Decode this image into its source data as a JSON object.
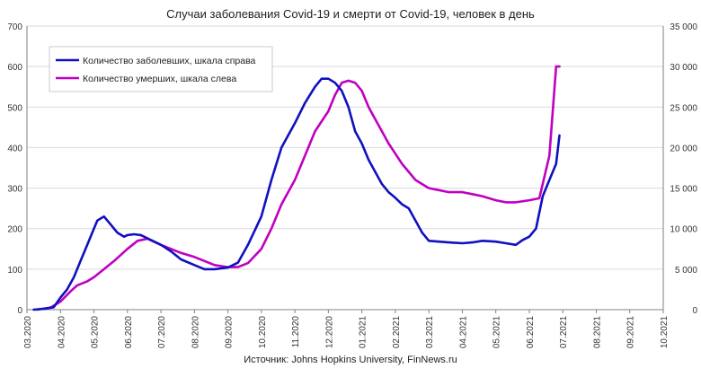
{
  "chart_data": {
    "type": "line",
    "title": "Случаи заболевания Covid-19 и смерти от Covid-19, человек в день",
    "source": "Источник: Johns Hopkins University, FinNews.ru",
    "x_labels": [
      "03.2020",
      "04.2020",
      "05.2020",
      "06.2020",
      "07.2020",
      "08.2020",
      "09.2020",
      "10.2020",
      "11.2020",
      "12.2020",
      "01.2021",
      "02.2021",
      "03.2021",
      "04.2021",
      "05.2021",
      "06.2021",
      "07.2021",
      "08.2021",
      "09.2021",
      "10.2021"
    ],
    "y_left": {
      "min": 0,
      "max": 700,
      "ticks": [
        "0",
        "100",
        "200",
        "300",
        "400",
        "500",
        "600",
        "700"
      ]
    },
    "y_right": {
      "min": 0,
      "max": 35000,
      "ticks": [
        "0",
        "5 000",
        "10 000",
        "15 000",
        "20 000",
        "25 000",
        "30 000",
        "35 000"
      ]
    },
    "colors": {
      "cases": "#1010c0",
      "deaths": "#c000c0",
      "grid": "#d9d9d9",
      "axis": "#808080"
    },
    "series": [
      {
        "name": "Количество заболевших, шкала справа",
        "axis": "right",
        "x_month_index": [
          0.2,
          0.5,
          0.8,
          1.0,
          1.2,
          1.4,
          1.6,
          1.8,
          2.0,
          2.1,
          2.3,
          2.5,
          2.7,
          2.9,
          3.0,
          3.2,
          3.4,
          3.6,
          3.8,
          4.0,
          4.3,
          4.6,
          5.0,
          5.3,
          5.6,
          6.0,
          6.3,
          6.6,
          7.0,
          7.3,
          7.6,
          8.0,
          8.3,
          8.6,
          8.8,
          9.0,
          9.2,
          9.4,
          9.6,
          9.8,
          10.0,
          10.2,
          10.4,
          10.6,
          10.8,
          11.0,
          11.2,
          11.4,
          11.6,
          11.8,
          12.0,
          12.3,
          12.6,
          13.0,
          13.3,
          13.6,
          14.0,
          14.3,
          14.6,
          14.8,
          15.0,
          15.2,
          15.4,
          15.6,
          15.8,
          15.9
        ],
        "values": [
          0,
          100,
          300,
          1500,
          2500,
          4000,
          6000,
          8000,
          10000,
          11000,
          11500,
          10500,
          9500,
          9000,
          9200,
          9300,
          9200,
          8800,
          8400,
          8000,
          7200,
          6200,
          5500,
          5000,
          5000,
          5200,
          5800,
          8000,
          11500,
          16000,
          20000,
          23000,
          25500,
          27500,
          28500,
          28500,
          28000,
          27000,
          25000,
          22000,
          20500,
          18500,
          17000,
          15500,
          14500,
          13800,
          13000,
          12500,
          11000,
          9500,
          8500,
          8400,
          8300,
          8200,
          8300,
          8500,
          8400,
          8200,
          8000,
          8600,
          9000,
          10000,
          14000,
          16000,
          18000,
          21500
        ]
      },
      {
        "name": "Количество умерших, шкала слева",
        "axis": "left",
        "x_month_index": [
          0.3,
          0.7,
          1.0,
          1.3,
          1.5,
          1.8,
          2.0,
          2.3,
          2.6,
          3.0,
          3.3,
          3.6,
          4.0,
          4.3,
          4.6,
          5.0,
          5.3,
          5.6,
          6.0,
          6.3,
          6.6,
          7.0,
          7.3,
          7.6,
          8.0,
          8.3,
          8.6,
          9.0,
          9.2,
          9.4,
          9.6,
          9.8,
          10.0,
          10.2,
          10.4,
          10.6,
          10.8,
          11.0,
          11.2,
          11.4,
          11.6,
          11.8,
          12.0,
          12.3,
          12.6,
          13.0,
          13.3,
          13.6,
          14.0,
          14.3,
          14.6,
          15.0,
          15.3,
          15.6,
          15.8,
          15.9
        ],
        "values": [
          0,
          5,
          20,
          45,
          60,
          70,
          80,
          100,
          120,
          150,
          170,
          175,
          160,
          150,
          140,
          130,
          120,
          110,
          105,
          105,
          115,
          150,
          200,
          260,
          320,
          380,
          440,
          490,
          530,
          560,
          565,
          560,
          540,
          500,
          470,
          440,
          410,
          385,
          360,
          340,
          320,
          310,
          300,
          295,
          290,
          290,
          285,
          280,
          270,
          265,
          265,
          270,
          275,
          380,
          600,
          600
        ]
      }
    ]
  }
}
